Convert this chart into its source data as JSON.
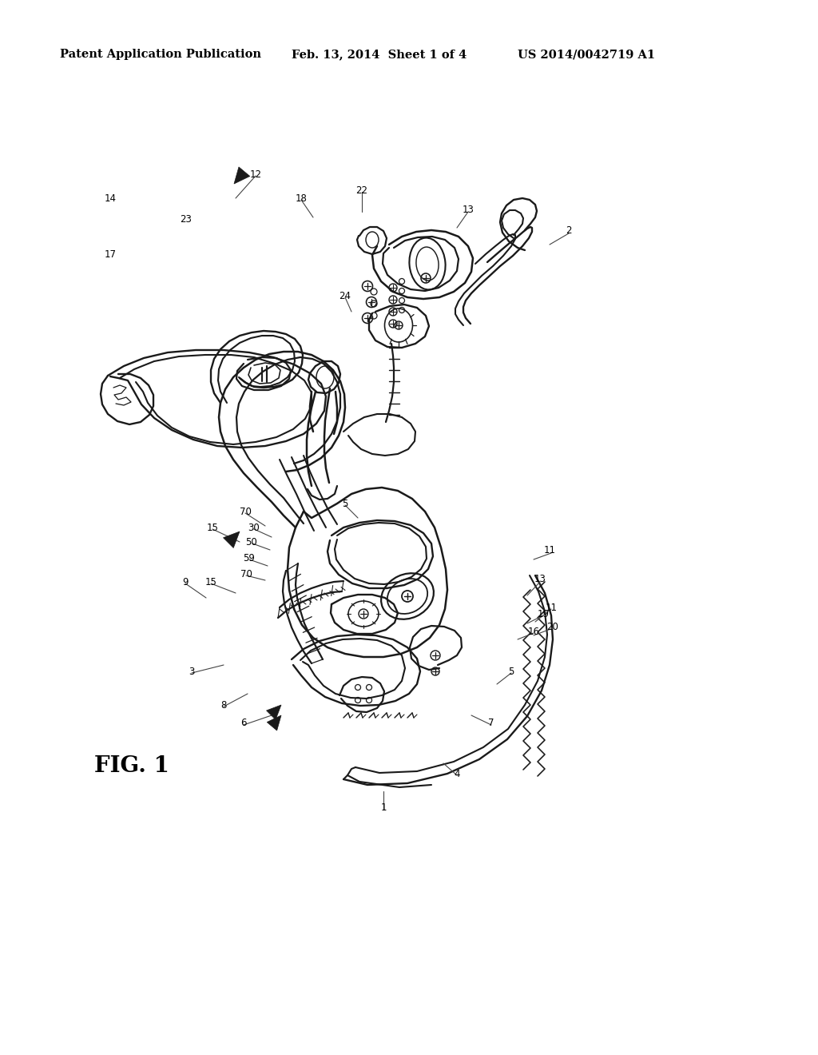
{
  "background_color": "#ffffff",
  "header_left": "Patent Application Publication",
  "header_center": "Feb. 13, 2014  Sheet 1 of 4",
  "header_right": "US 2014/0042719 A1",
  "figure_label": "FIG. 1",
  "header_fontsize": 10.5,
  "figure_label_fontsize": 20,
  "line_color": "#1a1a1a",
  "line_width": 1.3,
  "ref_fontsize": 8.5
}
